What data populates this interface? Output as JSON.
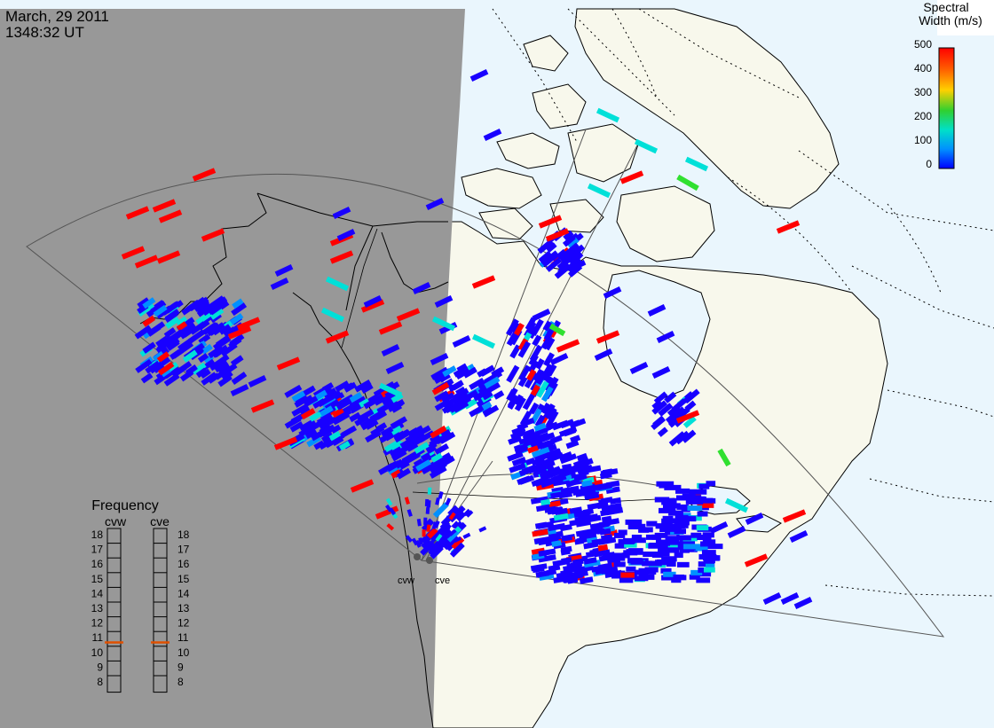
{
  "header": {
    "date": "March, 29 2011",
    "time": "1348:32 UT"
  },
  "colorbar": {
    "title_line1": "Spectral",
    "title_line2": "Width (m/s)",
    "ticks": [
      "500",
      "400",
      "300",
      "200",
      "100",
      "0"
    ],
    "colors": [
      "#ff0000",
      "#ff8000",
      "#ffd000",
      "#20d020",
      "#00e0c0",
      "#00a0ff",
      "#0000ff"
    ]
  },
  "frequency_panel": {
    "title": "Frequency",
    "radars": [
      "cvw",
      "cve"
    ],
    "ticks": [
      "18",
      "17",
      "16",
      "15",
      "14",
      "13",
      "12",
      "11",
      "10",
      "9",
      "8"
    ],
    "current_mhz": 11,
    "marker_color": "#e05000"
  },
  "radar_sites": {
    "labels": [
      "cvw",
      "cve"
    ]
  },
  "map": {
    "night_color": "#989898",
    "land_color": "#f8f8ec",
    "ocean_color": "#eaf6fd",
    "coast_color": "#000000"
  }
}
